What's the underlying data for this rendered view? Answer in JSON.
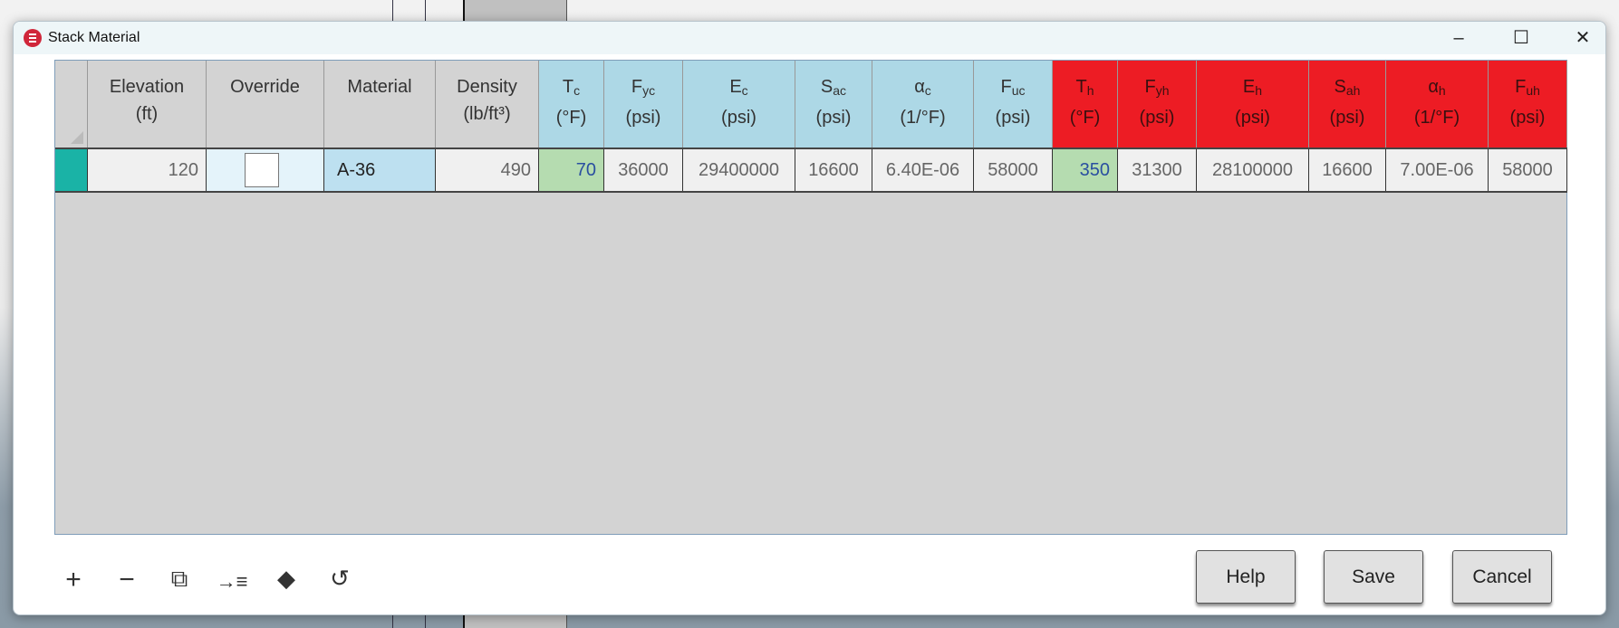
{
  "window": {
    "title": "Stack Material"
  },
  "columns": [
    {
      "main": "Elevation",
      "sub": "",
      "unit": "(ft)",
      "group": "base"
    },
    {
      "main": "Override",
      "sub": "",
      "unit": "",
      "group": "base"
    },
    {
      "main": "Material",
      "sub": "",
      "unit": "",
      "group": "base"
    },
    {
      "main": "Density",
      "sub": "",
      "unit": "(lb/ft³)",
      "group": "base"
    },
    {
      "main": "T",
      "sub": "c",
      "unit": "(°F)",
      "group": "cold"
    },
    {
      "main": "F",
      "sub": "yc",
      "unit": "(psi)",
      "group": "cold"
    },
    {
      "main": "E",
      "sub": "c",
      "unit": "(psi)",
      "group": "cold"
    },
    {
      "main": "S",
      "sub": "ac",
      "unit": "(psi)",
      "group": "cold"
    },
    {
      "main": "α",
      "sub": "c",
      "unit": "(1/°F)",
      "group": "cold"
    },
    {
      "main": "F",
      "sub": "uc",
      "unit": "(psi)",
      "group": "cold"
    },
    {
      "main": "T",
      "sub": "h",
      "unit": "(°F)",
      "group": "hot"
    },
    {
      "main": "F",
      "sub": "yh",
      "unit": "(psi)",
      "group": "hot"
    },
    {
      "main": "E",
      "sub": "h",
      "unit": "(psi)",
      "group": "hot"
    },
    {
      "main": "S",
      "sub": "ah",
      "unit": "(psi)",
      "group": "hot"
    },
    {
      "main": "α",
      "sub": "h",
      "unit": "(1/°F)",
      "group": "hot"
    },
    {
      "main": "F",
      "sub": "uh",
      "unit": "(psi)",
      "group": "hot"
    }
  ],
  "rows": [
    {
      "elevation": "120",
      "override": false,
      "material": "A-36",
      "density": "490",
      "tc": "70",
      "fyc": "36000",
      "ec": "29400000",
      "sac": "16600",
      "alphac": "6.40E-06",
      "fuc": "58000",
      "th": "350",
      "fyh": "31300",
      "eh": "28100000",
      "sah": "16600",
      "alphah": "7.00E-06",
      "fuh": "58000"
    }
  ],
  "toolbar": {
    "icons": [
      "add-icon",
      "remove-icon",
      "copy-icon",
      "insert-icon",
      "eraser-icon",
      "history-icon"
    ]
  },
  "buttons": {
    "help": "Help",
    "save": "Save",
    "cancel": "Cancel"
  },
  "colors": {
    "base_header": "#d3d3d3",
    "cold_header": "#add8e6",
    "hot_header": "#ed1c24",
    "editable_temp": "#b5dcb0",
    "row_selected": "#1ab3a6"
  }
}
